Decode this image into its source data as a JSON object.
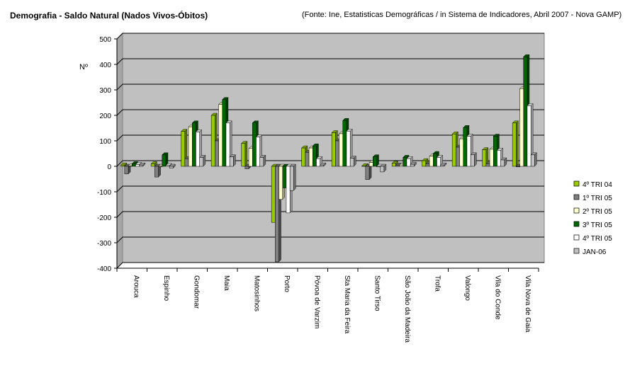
{
  "header": {
    "title": "Demografia - Saldo Natural (Nados Vivos-Óbitos)",
    "source": "(Fonte: Ine, Estatisticas Demográficas / in Sistema de Indicadores, Abril 2007 - Nova GAMP)"
  },
  "chart_data": {
    "type": "bar",
    "title": "Demografia - Saldo Natural (Nados Vivos-Óbitos)",
    "xlabel": "",
    "ylabel": "Nº",
    "ylim": [
      -400,
      500
    ],
    "yticks": [
      500,
      400,
      300,
      200,
      100,
      0,
      -100,
      -200,
      -300,
      -400
    ],
    "grid": true,
    "legend_position": "right",
    "categories": [
      "Arouca",
      "Espinho",
      "Gondomar",
      "Maia",
      "Matosinhos",
      "Porto",
      "Póvoa de Varzim",
      "Sta Maria da Feira",
      "Santo Tirso",
      "São João da Madeira",
      "Trofa",
      "Valongo",
      "Vila do Conde",
      "Vila Nova de Gaia"
    ],
    "series": [
      {
        "name": "4º TRI 04",
        "color": "#99CC00",
        "values": [
          5,
          10,
          137,
          200,
          90,
          -220,
          72,
          132,
          2,
          12,
          22,
          127,
          65,
          170
        ]
      },
      {
        "name": "1º TRI 05",
        "color": "#808080",
        "values": [
          -30,
          -42,
          30,
          100,
          -10,
          -375,
          55,
          100,
          -52,
          5,
          10,
          75,
          10,
          -2
        ]
      },
      {
        "name": "2º TRI 05",
        "color": "#FFFFCC",
        "values": [
          2,
          -2,
          155,
          243,
          70,
          -130,
          72,
          128,
          15,
          5,
          40,
          108,
          67,
          305
        ]
      },
      {
        "name": "3º TRI 05",
        "color": "#006600",
        "values": [
          10,
          45,
          170,
          262,
          170,
          -85,
          80,
          180,
          37,
          35,
          50,
          152,
          118,
          430
        ]
      },
      {
        "name": "4º TRI 05",
        "color": "#FFFFFF",
        "values": [
          7,
          3,
          135,
          170,
          115,
          -183,
          30,
          138,
          0,
          30,
          35,
          118,
          63,
          238
        ]
      },
      {
        "name": "JAN-06",
        "color": "#C0C0C0",
        "values": [
          5,
          -7,
          35,
          37,
          35,
          -95,
          5,
          32,
          -22,
          8,
          5,
          45,
          25,
          45
        ]
      }
    ]
  }
}
